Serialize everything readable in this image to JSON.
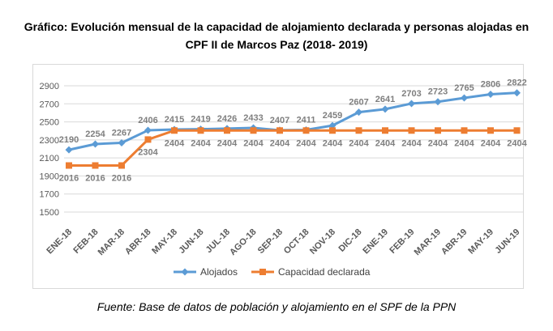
{
  "title_line1": "Gráfico: Evolución mensual de la capacidad de alojamiento declarada y personas alojadas en",
  "title_line2": "CPF II de Marcos Paz (2018- 2019)",
  "source": "Fuente: Base de datos de población y alojamiento en el SPF de la PPN",
  "chart_data": {
    "type": "line",
    "categories": [
      "ENE-18",
      "FEB-18",
      "MAR-18",
      "ABR-18",
      "MAY-18",
      "JUN-18",
      "JUL-18",
      "AGO-18",
      "SEP-18",
      "OCT-18",
      "NOV-18",
      "DIC-18",
      "ENE-19",
      "FEB-19",
      "MAR-19",
      "ABR-19",
      "MAY-19",
      "JUN-19"
    ],
    "series": [
      {
        "name": "Alojados",
        "color": "#5b9bd5",
        "marker": "diamond",
        "values": [
          2190,
          2254,
          2267,
          2406,
          2415,
          2419,
          2426,
          2433,
          2407,
          2411,
          2459,
          2607,
          2641,
          2703,
          2723,
          2765,
          2806,
          2822
        ]
      },
      {
        "name": "Capacidad declarada",
        "color": "#ed7d31",
        "marker": "square",
        "values": [
          2016,
          2016,
          2016,
          2304,
          2404,
          2404,
          2404,
          2404,
          2404,
          2404,
          2404,
          2404,
          2404,
          2404,
          2404,
          2404,
          2404,
          2404
        ]
      }
    ],
    "yticks": [
      1500,
      1700,
      1900,
      2100,
      2300,
      2500,
      2700,
      2900
    ],
    "ylim": [
      1500,
      2900
    ],
    "grid": true,
    "legend": "bottom",
    "label_color": "#7f7f7f"
  }
}
